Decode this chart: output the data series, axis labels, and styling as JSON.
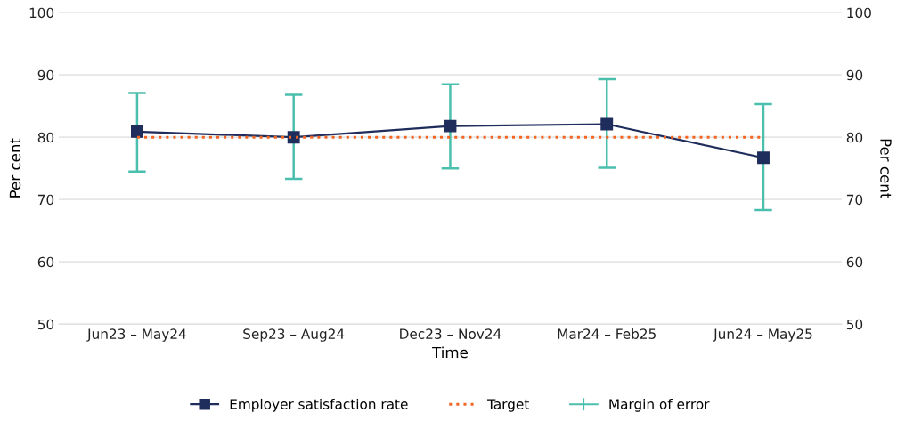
{
  "chart_data": {
    "type": "line",
    "xlabel": "Time",
    "ylabel": "Per cent",
    "y2label": "Per cent",
    "categories": [
      "Jun23 – May24",
      "Sep23 – Aug24",
      "Dec23 – Nov24",
      "Mar24 – Feb25",
      "Jun24 – May25"
    ],
    "series": [
      {
        "name": "Employer satisfaction rate",
        "color": "#1f2d5c",
        "marker": "square",
        "line_style": "solid",
        "values": [
          80.9,
          80.0,
          81.8,
          82.1,
          76.7
        ],
        "errors": [
          [
            74.5,
            87.1
          ],
          [
            73.3,
            86.8
          ],
          [
            75.0,
            88.5
          ],
          [
            75.1,
            89.3
          ],
          [
            68.3,
            85.3
          ]
        ]
      },
      {
        "name": "Target",
        "color": "#f26522",
        "marker": "none",
        "line_style": "dotted",
        "values": [
          80,
          80,
          80,
          80,
          80
        ]
      }
    ],
    "annotations": [
      "Margin of error"
    ],
    "ylim": [
      50,
      100
    ],
    "yticks": [
      50,
      60,
      70,
      80,
      90,
      100
    ],
    "y2lim": [
      50,
      100
    ],
    "y2ticks": [
      50,
      60,
      70,
      80,
      90,
      100
    ],
    "grid": "y",
    "legend": "bottom"
  }
}
